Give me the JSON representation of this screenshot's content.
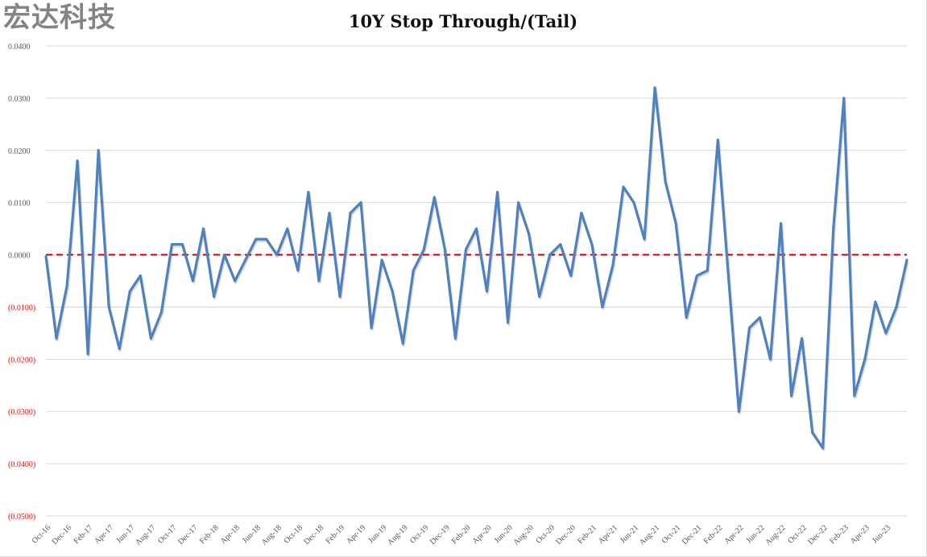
{
  "chart_data": {
    "type": "line",
    "title": "10Y Stop Through/(Tail)",
    "xlabel": "",
    "ylabel": "",
    "ylim": [
      -0.05,
      0.04
    ],
    "yticks": [
      0.04,
      0.03,
      0.02,
      0.01,
      0.0,
      -0.01,
      -0.02,
      -0.03,
      -0.04,
      -0.05
    ],
    "ytick_labels": [
      "0.0400",
      "0.0300",
      "0.0200",
      "0.0100",
      "0.0000",
      "(0.0100)",
      "(0.0200)",
      "(0.0300)",
      "(0.0400)",
      "(0.0500)"
    ],
    "grid": true,
    "start_month": "Oct-16",
    "xtick_labels": [
      "Oct-16",
      "Dec-16",
      "Feb-17",
      "Apr-17",
      "Jun-17",
      "Aug-17",
      "Oct-17",
      "Dec-17",
      "Feb-18",
      "Apr-18",
      "Jun-18",
      "Aug-18",
      "Oct-18",
      "Dec-18",
      "Feb-19",
      "Apr-19",
      "Jun-19",
      "Aug-19",
      "Oct-19",
      "Dec-19",
      "Feb-20",
      "Apr-20",
      "Jun-20",
      "Aug-20",
      "Oct-20",
      "Dec-20",
      "Feb-21",
      "Apr-21",
      "Jun-21",
      "Aug-21",
      "Oct-21",
      "Dec-21",
      "Feb-22",
      "Apr-22",
      "Jun-22",
      "Aug-22",
      "Oct-22",
      "Dec-22",
      "Feb-23",
      "Apr-23",
      "Jun-23"
    ],
    "series": [
      {
        "name": "10Y Stop Through/(Tail)",
        "color": "#4f81bd",
        "values": [
          -0.0003,
          -0.016,
          -0.006,
          0.018,
          -0.019,
          0.02,
          -0.01,
          -0.018,
          -0.007,
          -0.004,
          -0.016,
          -0.011,
          0.002,
          0.002,
          -0.005,
          0.005,
          -0.008,
          0.0,
          -0.005,
          -0.001,
          0.003,
          0.003,
          0.0,
          0.005,
          -0.003,
          0.012,
          -0.005,
          0.008,
          -0.008,
          0.008,
          0.01,
          -0.014,
          -0.001,
          -0.007,
          -0.017,
          -0.003,
          0.001,
          0.011,
          0.001,
          -0.016,
          0.001,
          0.005,
          -0.007,
          0.012,
          -0.013,
          0.01,
          0.004,
          -0.008,
          0.0,
          0.002,
          -0.004,
          0.008,
          0.002,
          -0.01,
          -0.002,
          0.013,
          0.01,
          0.003,
          0.032,
          0.014,
          0.006,
          -0.012,
          -0.004,
          -0.003,
          0.022,
          -0.004,
          -0.03,
          -0.014,
          -0.012,
          -0.02,
          0.006,
          -0.027,
          -0.016,
          -0.034,
          -0.037,
          0.005,
          0.03,
          -0.027,
          -0.02,
          -0.009,
          -0.015,
          -0.01,
          -0.001
        ]
      }
    ],
    "reference_line": {
      "value": 0.0,
      "color": "#cc0000",
      "style": "dashed"
    },
    "colors": {
      "positive_tick": "#595959",
      "negative_tick": "#ff0000",
      "grid": "#d9d9d9"
    }
  },
  "watermark": "宏达科技"
}
